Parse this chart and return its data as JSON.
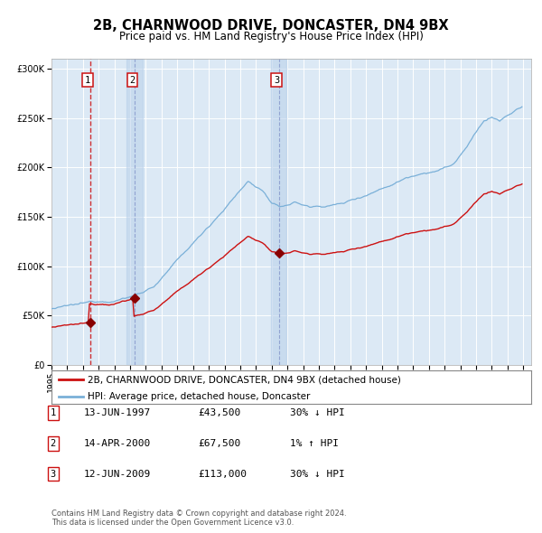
{
  "title": "2B, CHARNWOOD DRIVE, DONCASTER, DN4 9BX",
  "subtitle": "Price paid vs. HM Land Registry's House Price Index (HPI)",
  "property_label": "2B, CHARNWOOD DRIVE, DONCASTER, DN4 9BX (detached house)",
  "hpi_label": "HPI: Average price, detached house, Doncaster",
  "sale_info": [
    {
      "num": "1",
      "date": "13-JUN-1997",
      "price": "£43,500",
      "hpi": "30% ↓ HPI"
    },
    {
      "num": "2",
      "date": "14-APR-2000",
      "price": "£67,500",
      "hpi": "1% ↑ HPI"
    },
    {
      "num": "3",
      "date": "12-JUN-2009",
      "price": "£113,000",
      "hpi": "30% ↓ HPI"
    }
  ],
  "sale_year_floats": [
    1997.45,
    2000.29,
    2009.45
  ],
  "sale_prices": [
    43500,
    67500,
    113000
  ],
  "plot_bg_color": "#dce9f5",
  "grid_color": "#ffffff",
  "hpi_line_color": "#7ab0d8",
  "property_line_color": "#cc1111",
  "sale_marker_color": "#880000",
  "ylim": [
    0,
    310000
  ],
  "yticks": [
    0,
    50000,
    100000,
    150000,
    200000,
    250000,
    300000
  ],
  "xlim": [
    1995.0,
    2025.5
  ],
  "title_fontsize": 10.5,
  "subtitle_fontsize": 8.5,
  "tick_fontsize": 7,
  "legend_fontsize": 7.5,
  "table_fontsize": 8,
  "footnote_fontsize": 6,
  "footnote": "Contains HM Land Registry data © Crown copyright and database right 2024.\nThis data is licensed under the Open Government Licence v3.0."
}
